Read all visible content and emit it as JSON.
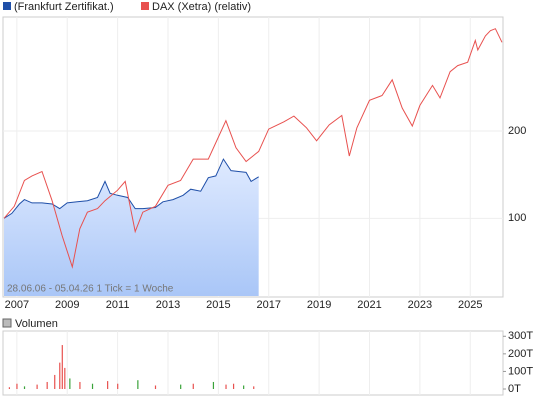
{
  "chart_data": [
    {
      "type": "line",
      "legend_position": "top-left",
      "annotation": "28.06.06 - 05.04.26   1 Tick = 1 Woche",
      "log_scale": true,
      "grid": true,
      "xlim": [
        2006.45,
        2026.3
      ],
      "xticks": [
        2007,
        2009,
        2011,
        2013,
        2015,
        2017,
        2019,
        2021,
        2023,
        2025
      ],
      "ylim": [
        54,
        490
      ],
      "yticks": [
        100,
        200
      ],
      "series": [
        {
          "name": "(Frankfurt Zertifikat.)",
          "color": "#1f4fa8",
          "area": true,
          "x": [
            2006.49,
            2006.8,
            2007.1,
            2007.3,
            2007.6,
            2008.0,
            2008.4,
            2008.7,
            2009.0,
            2009.4,
            2009.8,
            2010.2,
            2010.5,
            2010.7,
            2011.0,
            2011.4,
            2011.7,
            2012.0,
            2012.5,
            2012.8,
            2013.2,
            2013.6,
            2013.9,
            2014.3,
            2014.6,
            2014.9,
            2015.2,
            2015.5,
            2015.8,
            2016.1,
            2016.3,
            2016.6
          ],
          "values": [
            100,
            104,
            112,
            116,
            113,
            113,
            112,
            108,
            113,
            114,
            115,
            118,
            134,
            122,
            120,
            118,
            108,
            108,
            109,
            114,
            116,
            120,
            126,
            124,
            138,
            140,
            160,
            146,
            145,
            144,
            134,
            139
          ]
        },
        {
          "name": "DAX (Xetra) (relativ)",
          "color": "#e8514f",
          "area": false,
          "x": [
            2006.49,
            2006.9,
            2007.3,
            2007.6,
            2008.0,
            2008.4,
            2008.8,
            2009.2,
            2009.5,
            2009.8,
            2010.2,
            2010.5,
            2011.0,
            2011.3,
            2011.7,
            2012.0,
            2012.5,
            2013.0,
            2013.5,
            2014.0,
            2014.6,
            2015.3,
            2015.7,
            2016.1,
            2016.6,
            2017.0,
            2017.6,
            2018.0,
            2018.5,
            2018.9,
            2019.4,
            2019.9,
            2020.2,
            2020.5,
            2021.0,
            2021.5,
            2021.9,
            2022.3,
            2022.7,
            2023.0,
            2023.5,
            2023.8,
            2024.2,
            2024.5,
            2024.9,
            2025.2,
            2025.3,
            2025.6,
            2025.8,
            2026.0,
            2026.26
          ],
          "values": [
            100,
            110,
            135,
            140,
            145,
            115,
            87,
            68,
            92,
            105,
            108,
            115,
            125,
            134,
            90,
            105,
            110,
            130,
            135,
            160,
            160,
            217,
            175,
            157,
            170,
            203,
            215,
            225,
            205,
            185,
            210,
            226,
            164,
            205,
            255,
            265,
            300,
            240,
            208,
            245,
            287,
            260,
            320,
            336,
            345,
            410,
            380,
            425,
            443,
            450,
            404
          ]
        }
      ]
    },
    {
      "type": "bar",
      "legend_position": "top-left",
      "series_name": "Volumen",
      "xlim": [
        2006.45,
        2026.3
      ],
      "ylim": [
        0,
        330
      ],
      "yticks": [
        {
          "value": 0,
          "label": "0T"
        },
        {
          "value": 100,
          "label": "100T"
        },
        {
          "value": 200,
          "label": "200T"
        },
        {
          "value": 300,
          "label": "300T"
        }
      ],
      "x": [
        2006.7,
        2007.0,
        2007.3,
        2007.8,
        2008.2,
        2008.5,
        2008.7,
        2008.8,
        2008.9,
        2009.1,
        2009.5,
        2010.0,
        2010.6,
        2011.0,
        2011.8,
        2012.5,
        2013.5,
        2014.0,
        2014.8,
        2015.3,
        2015.6,
        2016.0,
        2016.4
      ],
      "values": [
        10,
        30,
        15,
        25,
        40,
        80,
        150,
        250,
        120,
        60,
        40,
        30,
        45,
        30,
        50,
        20,
        25,
        30,
        40,
        25,
        30,
        20,
        15
      ],
      "colors": [
        "#e8514f",
        "#e8514f",
        "#3aa33a",
        "#e8514f",
        "#e8514f",
        "#e8514f",
        "#e8514f",
        "#e8514f",
        "#e8514f",
        "#3aa33a",
        "#e8514f",
        "#3aa33a",
        "#e8514f",
        "#e8514f",
        "#3aa33a",
        "#e8514f",
        "#3aa33a",
        "#e8514f",
        "#3aa33a",
        "#e8514f",
        "#e8514f",
        "#3aa33a",
        "#e8514f"
      ]
    }
  ]
}
